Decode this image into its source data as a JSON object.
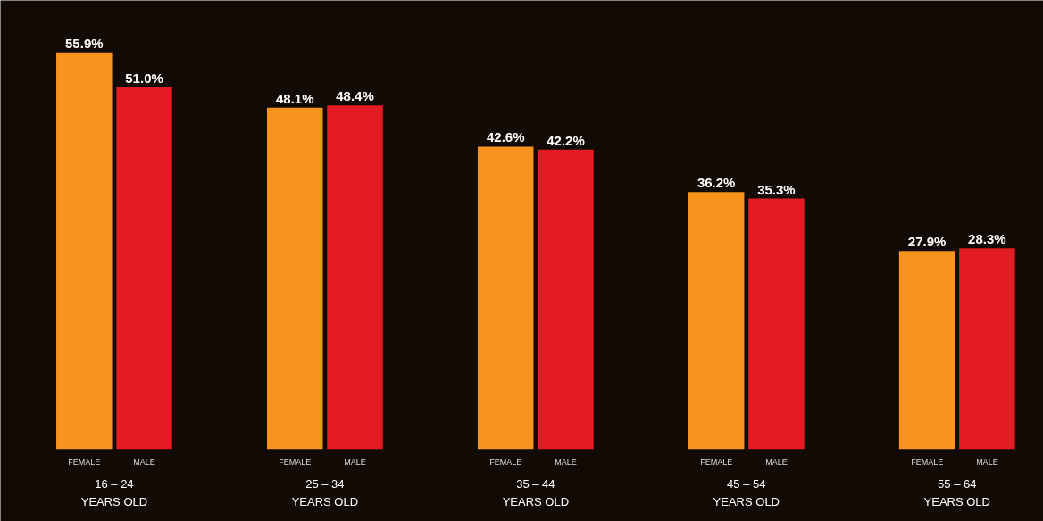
{
  "chart_data": {
    "type": "bar",
    "categories": [
      "16 – 24\nYEARS OLD",
      "25 – 34\nYEARS OLD",
      "35 – 44\nYEARS OLD",
      "45 – 54\nYEARS OLD",
      "55 – 64\nYEARS OLD"
    ],
    "series": [
      {
        "name": "FEMALE",
        "color": "#f7941d",
        "values": [
          55.9,
          48.1,
          42.6,
          36.2,
          27.9
        ],
        "value_labels": [
          "55.9%",
          "48.1%",
          "42.6%",
          "36.2%",
          "27.9%"
        ]
      },
      {
        "name": "MALE",
        "color": "#e31b23",
        "values": [
          51.0,
          48.4,
          42.2,
          35.3,
          28.3
        ],
        "value_labels": [
          "51.0%",
          "48.4%",
          "42.2%",
          "35.3%",
          "28.3%"
        ]
      }
    ]
  }
}
